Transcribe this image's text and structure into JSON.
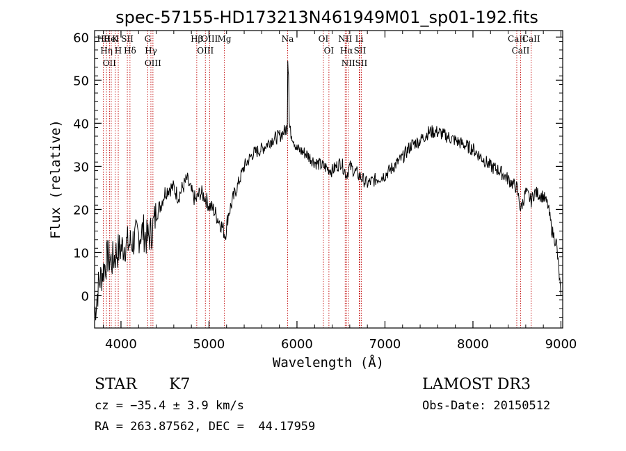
{
  "chart_data": {
    "type": "line",
    "title": "spec-57155-HD173213N461949M01_sp01-192.fits",
    "xlabel": "Wavelength (Å)",
    "ylabel": "Flux (relative)",
    "xlim": [
      3700,
      9020
    ],
    "ylim": [
      -7.5,
      61.5
    ],
    "xticks": [
      4000,
      5000,
      6000,
      7000,
      8000,
      9000
    ],
    "xtick_labels": [
      "4000",
      "5000",
      "6000",
      "7000",
      "8000",
      "9000"
    ],
    "yticks": [
      0,
      10,
      20,
      30,
      40,
      50,
      60
    ],
    "ytick_labels": [
      "0",
      "10",
      "20",
      "30",
      "40",
      "50",
      "60"
    ],
    "series": [
      {
        "name": "spectrum",
        "x": [
          3700,
          3750,
          3800,
          3850,
          3900,
          3950,
          4000,
          4050,
          4100,
          4150,
          4200,
          4250,
          4300,
          4350,
          4400,
          4450,
          4500,
          4550,
          4600,
          4650,
          4700,
          4750,
          4800,
          4850,
          4900,
          4950,
          5000,
          5050,
          5100,
          5150,
          5185,
          5220,
          5300,
          5400,
          5500,
          5600,
          5700,
          5800,
          5850,
          5890,
          5895,
          5905,
          5912,
          5925,
          5950,
          6000,
          6100,
          6200,
          6300,
          6400,
          6500,
          6563,
          6600,
          6650,
          6700,
          6750,
          6800,
          6900,
          7000,
          7100,
          7200,
          7300,
          7400,
          7500,
          7600,
          7700,
          7800,
          7900,
          8000,
          8100,
          8200,
          8300,
          8400,
          8500,
          8542,
          8600,
          8662,
          8700,
          8800,
          8850,
          8900,
          8950,
          9000
        ],
        "y": [
          -4,
          3,
          6,
          9,
          8,
          10,
          11,
          12,
          12,
          13,
          14,
          15,
          13,
          15,
          19,
          21,
          24,
          25,
          25,
          23,
          25,
          27,
          24,
          22,
          24,
          23,
          21,
          20,
          18,
          16,
          14,
          19,
          24,
          30,
          33,
          34,
          36,
          37,
          38,
          39,
          55,
          52,
          40,
          38,
          37,
          34,
          33,
          31,
          30,
          29,
          31,
          28,
          30,
          29,
          28,
          27,
          26,
          27,
          28,
          30,
          32,
          35,
          36,
          38,
          38,
          37,
          36,
          35,
          34,
          32,
          30,
          29,
          27,
          25,
          20,
          24,
          22,
          24,
          23,
          21,
          15,
          12,
          0
        ]
      }
    ],
    "lines": [
      {
        "wavelength": 3798,
        "label": "Hθ"
      },
      {
        "wavelength": 3835,
        "label": "Hη"
      },
      {
        "wavelength": 3869,
        "label": "OII"
      },
      {
        "wavelength": 3889,
        "label": "HeI"
      },
      {
        "wavelength": 3934,
        "label": "K"
      },
      {
        "wavelength": 3969,
        "label": "H"
      },
      {
        "wavelength": 4072,
        "label": "SII"
      },
      {
        "wavelength": 4102,
        "label": "Hδ"
      },
      {
        "wavelength": 4304,
        "label": "G"
      },
      {
        "wavelength": 4340,
        "label": "Hγ"
      },
      {
        "wavelength": 4363,
        "label": "OIII"
      },
      {
        "wavelength": 4861,
        "label": "Hβ"
      },
      {
        "wavelength": 4959,
        "label": "OIII"
      },
      {
        "wavelength": 5007,
        "label": "OIII"
      },
      {
        "wavelength": 5175,
        "label": "Mg"
      },
      {
        "wavelength": 5893,
        "label": "Na"
      },
      {
        "wavelength": 6300,
        "label": "OI"
      },
      {
        "wavelength": 6363,
        "label": "OI"
      },
      {
        "wavelength": 6548,
        "label": "NII"
      },
      {
        "wavelength": 6563,
        "label": "Hα"
      },
      {
        "wavelength": 6583,
        "label": "NII"
      },
      {
        "wavelength": 6708,
        "label": "Li"
      },
      {
        "wavelength": 6716,
        "label": "SII"
      },
      {
        "wavelength": 6731,
        "label": "SII"
      },
      {
        "wavelength": 8498,
        "label": "CaII"
      },
      {
        "wavelength": 8542,
        "label": "CaII"
      },
      {
        "wavelength": 8662,
        "label": "CaII"
      }
    ]
  },
  "info": {
    "class_label": "STAR",
    "subclass": "K7",
    "survey": "LAMOST DR3",
    "cz": "cz = −35.4 ± 3.9 km/s",
    "obs_date": "Obs-Date: 20150512",
    "coords": "RA = 263.87562, DEC =  44.17959"
  },
  "colors": {
    "spectrum": "#000000",
    "line_marker": "#c00000",
    "axes": "#000000"
  }
}
